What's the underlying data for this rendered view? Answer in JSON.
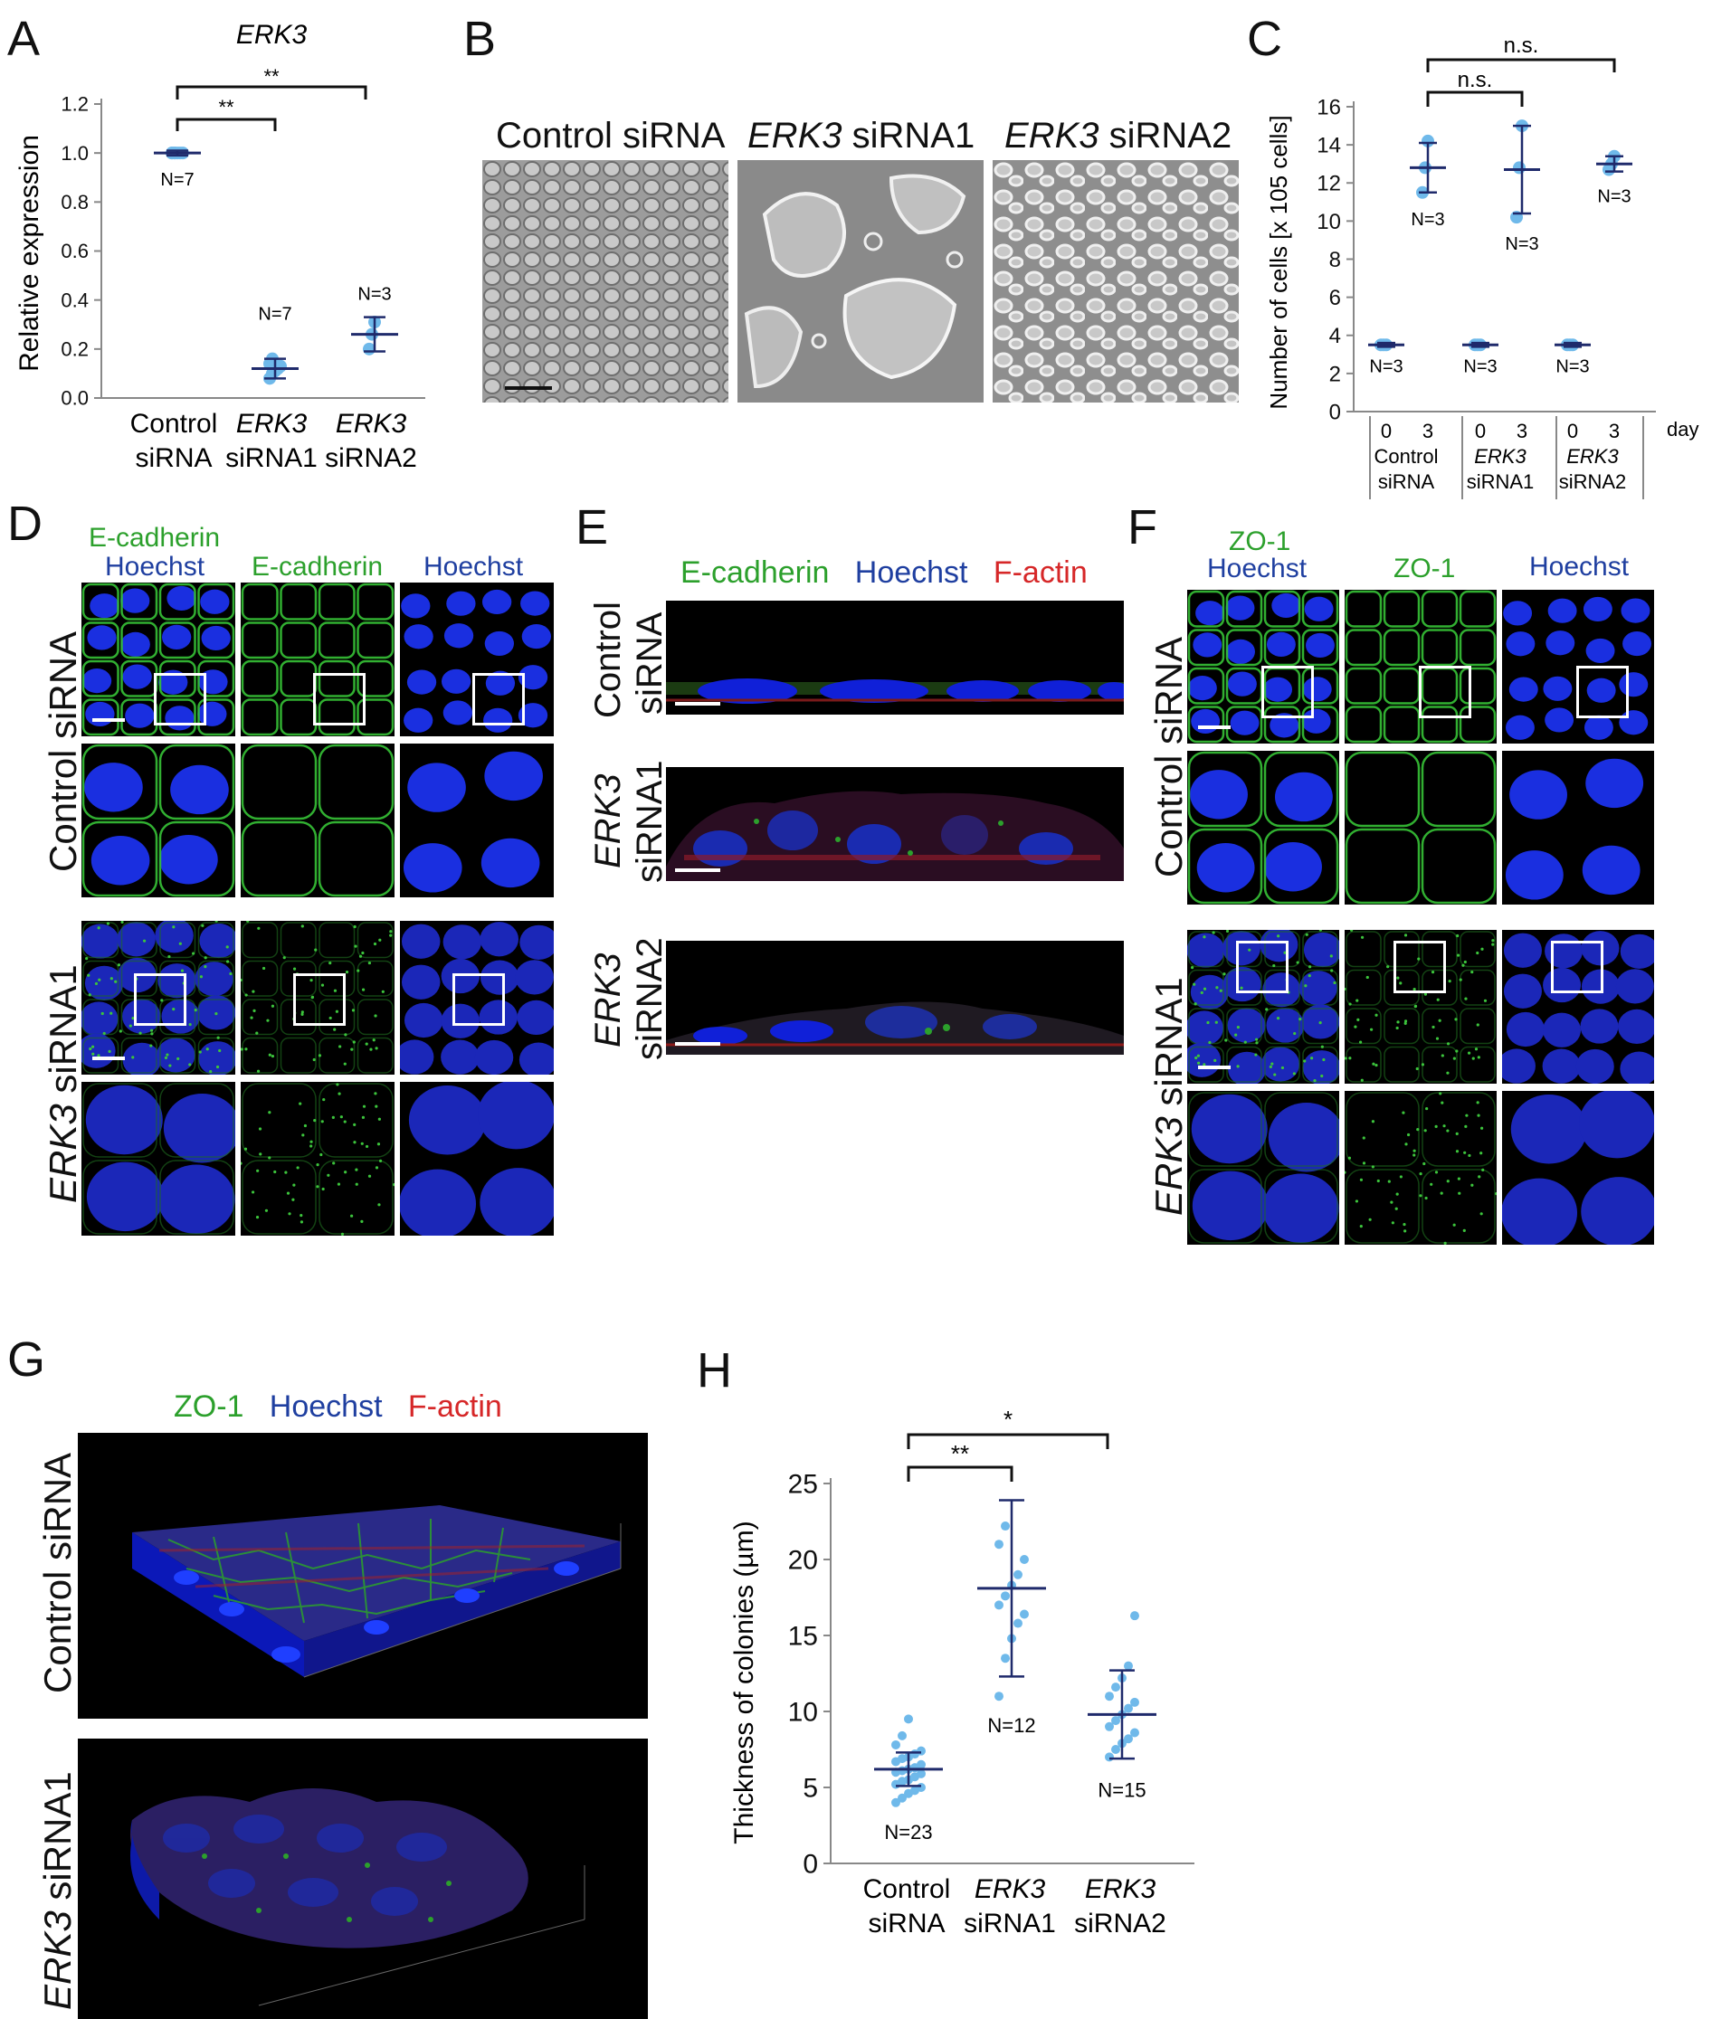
{
  "panels": {
    "A": {
      "letter": "A",
      "title": "ERK3",
      "ylabel": "Relative expression",
      "sig": [
        "**",
        "**"
      ],
      "xlabels": [
        [
          "Control",
          "siRNA"
        ],
        [
          "ERK3",
          "siRNA1"
        ],
        [
          "ERK3",
          "siRNA2"
        ]
      ],
      "ns": [
        "N=7",
        "N=7",
        "N=3"
      ]
    },
    "B": {
      "letter": "B",
      "col1": "Control siRNA",
      "col2_it": "ERK3",
      "col2": " siRNA1",
      "col3_it": "ERK3",
      "col3": " siRNA2"
    },
    "C": {
      "letter": "C",
      "ylabel": "Number of cells [x 10",
      "ylabel_sup": "5",
      "ylabel_end": " cells]",
      "sig": [
        "n.s.",
        "n.s."
      ],
      "day_label": "day",
      "ns": [
        "N=3",
        "N=3",
        "N=3",
        "N=3",
        "N=3",
        "N=3"
      ],
      "groups": [
        [
          "Control",
          "siRNA"
        ],
        [
          "ERK3",
          "siRNA1"
        ],
        [
          "ERK3",
          "siRNA2"
        ]
      ]
    },
    "D": {
      "letter": "D",
      "col1a": "E-cadherin",
      "col1b": "Hoechst",
      "col2": "E-cadherin",
      "col3": "Hoechst",
      "row1": "Control siRNA",
      "row2_it": "ERK3",
      "row2": " siRNA1"
    },
    "E": {
      "letter": "E",
      "h1": "E-cadherin",
      "h2": "Hoechst",
      "h3": "F-actin",
      "r1a": "Control",
      "r1b": "siRNA",
      "r2a": "ERK3",
      "r2b": "siRNA1",
      "r3a": "ERK3",
      "r3b": "siRNA2"
    },
    "F": {
      "letter": "F",
      "col1a": "ZO-1",
      "col1b": "Hoechst",
      "col2": "ZO-1",
      "col3": "Hoechst",
      "row1": "Control siRNA",
      "row2_it": "ERK3",
      "row2": " siRNA1"
    },
    "G": {
      "letter": "G",
      "h1": "ZO-1",
      "h2": "Hoechst",
      "h3": "F-actin",
      "row1": "Control siRNA",
      "row2_it": "ERK3",
      "row2": " siRNA1"
    },
    "H": {
      "letter": "H",
      "ylabel": "Thickness of colonies (µm)",
      "sig": [
        "**",
        "*"
      ],
      "xlabels": [
        [
          "Control",
          "siRNA"
        ],
        [
          "ERK3",
          "siRNA1"
        ],
        [
          "ERK3",
          "siRNA2"
        ]
      ],
      "ns": [
        "N=23",
        "N=12",
        "N=15"
      ]
    }
  },
  "colors": {
    "point": "#6fb9ea",
    "mean": "#1f2a6b",
    "green": "#2ca02c",
    "blue": "#1f3fa0",
    "red": "#d62728"
  },
  "chart_data": [
    {
      "type": "scatter",
      "title": "ERK3",
      "ylabel": "Relative expression",
      "categories": [
        "Control siRNA",
        "ERK3 siRNA1",
        "ERK3 siRNA2"
      ],
      "ylim": [
        0.0,
        1.2
      ],
      "yticks": [
        0.0,
        0.2,
        0.4,
        0.6,
        0.8,
        1.0,
        1.2
      ],
      "mean": [
        1.0,
        0.12,
        0.26
      ],
      "sd": [
        0.01,
        0.04,
        0.07
      ],
      "points": [
        [
          1.0,
          1.0,
          1.0,
          1.0,
          1.0,
          1.0,
          1.0
        ],
        [
          0.08,
          0.1,
          0.11,
          0.12,
          0.13,
          0.14,
          0.16
        ],
        [
          0.2,
          0.26,
          0.31
        ]
      ]
    },
    {
      "type": "scatter",
      "ylabel": "Number of cells [x 10^5 cells]",
      "categories": [
        "Control siRNA day 0",
        "Control siRNA day 3",
        "ERK3 siRNA1 day 0",
        "ERK3 siRNA1 day 3",
        "ERK3 siRNA2 day 0",
        "ERK3 siRNA2 day 3"
      ],
      "ylim": [
        0,
        16
      ],
      "yticks": [
        0,
        2,
        4,
        6,
        8,
        10,
        12,
        14,
        16
      ],
      "mean": [
        3.5,
        12.8,
        3.5,
        12.7,
        3.5,
        13.0
      ],
      "sd": [
        0.1,
        1.3,
        0.1,
        2.3,
        0.1,
        0.4
      ],
      "points": [
        [
          3.5,
          3.5,
          3.5
        ],
        [
          11.5,
          12.8,
          14.2
        ],
        [
          3.5,
          3.5,
          3.5
        ],
        [
          10.2,
          12.8,
          15.0
        ],
        [
          3.5,
          3.5,
          3.5
        ],
        [
          12.7,
          13.0,
          13.4
        ]
      ]
    },
    {
      "type": "scatter",
      "ylabel": "Thickness of colonies (µm)",
      "categories": [
        "Control siRNA",
        "ERK3 siRNA1",
        "ERK3 siRNA2"
      ],
      "ylim": [
        0,
        25
      ],
      "yticks": [
        0,
        5,
        10,
        15,
        20,
        25
      ],
      "mean": [
        6.2,
        18.1,
        9.8
      ],
      "sd": [
        1.1,
        5.8,
        2.9
      ],
      "points": [
        [
          4.0,
          4.3,
          4.6,
          4.8,
          5.0,
          5.2,
          5.4,
          5.5,
          5.7,
          5.9,
          6.0,
          6.1,
          6.2,
          6.3,
          6.5,
          6.7,
          6.9,
          7.0,
          7.2,
          7.4,
          7.8,
          8.4,
          9.5
        ],
        [
          11.0,
          13.5,
          14.8,
          15.8,
          16.4,
          17.0,
          17.6,
          18.3,
          19.0,
          20.0,
          21.0,
          22.2
        ],
        [
          7.0,
          7.5,
          7.9,
          8.2,
          8.6,
          9.0,
          9.4,
          9.8,
          10.2,
          10.6,
          11.0,
          11.6,
          12.2,
          13.0,
          16.3
        ]
      ]
    }
  ]
}
